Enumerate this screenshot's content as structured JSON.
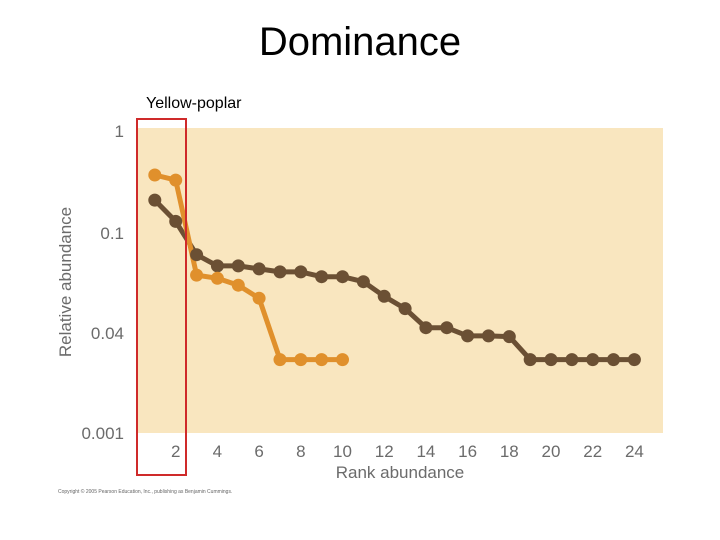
{
  "slide": {
    "title": "Dominance",
    "annotation": "Yellow-poplar",
    "copyright": "Copyright © 2005 Pearson Education, Inc., publishing as Benjamin Cummings."
  },
  "colors": {
    "plot_background": "#f9e6bf",
    "series_dark": "#6b5034",
    "series_orange": "#e0902c",
    "highlight_box": "#cf2a2a",
    "text": "#6b6b6b"
  },
  "chart_data": {
    "type": "line",
    "xlabel": "Rank abundance",
    "ylabel": "Relative abundance",
    "x_ticks": [
      "2",
      "4",
      "6",
      "8",
      "10",
      "12",
      "14",
      "16",
      "18",
      "20",
      "22",
      "24"
    ],
    "y_ticks": [
      "1",
      "0.1",
      "0.04",
      "0.001"
    ],
    "xlim": [
      0,
      25
    ],
    "y_scale": "nonuniform log-like",
    "grid": false,
    "series": [
      {
        "color": "#6b5034",
        "points": [
          {
            "x": 1,
            "y": 0.21
          },
          {
            "x": 2,
            "y": 0.13
          },
          {
            "x": 3,
            "y": 0.082
          },
          {
            "x": 4,
            "y": 0.074
          },
          {
            "x": 5,
            "y": 0.074
          },
          {
            "x": 6,
            "y": 0.072
          },
          {
            "x": 7,
            "y": 0.07
          },
          {
            "x": 8,
            "y": 0.07
          },
          {
            "x": 9,
            "y": 0.067
          },
          {
            "x": 10,
            "y": 0.067
          },
          {
            "x": 11,
            "y": 0.064
          },
          {
            "x": 12,
            "y": 0.056
          },
          {
            "x": 13,
            "y": 0.05
          },
          {
            "x": 14,
            "y": 0.042
          },
          {
            "x": 15,
            "y": 0.042
          },
          {
            "x": 16,
            "y": 0.036
          },
          {
            "x": 17,
            "y": 0.036
          },
          {
            "x": 18,
            "y": 0.035
          },
          {
            "x": 19,
            "y": 0.015
          },
          {
            "x": 20,
            "y": 0.015
          },
          {
            "x": 21,
            "y": 0.015
          },
          {
            "x": 22,
            "y": 0.015
          },
          {
            "x": 23,
            "y": 0.015
          },
          {
            "x": 24,
            "y": 0.015
          }
        ]
      },
      {
        "color": "#e0902c",
        "points": [
          {
            "x": 1,
            "y": 0.37
          },
          {
            "x": 2,
            "y": 0.33
          },
          {
            "x": 3,
            "y": 0.068
          },
          {
            "x": 4,
            "y": 0.066
          },
          {
            "x": 5,
            "y": 0.062
          },
          {
            "x": 6,
            "y": 0.055
          },
          {
            "x": 7,
            "y": 0.015
          },
          {
            "x": 8,
            "y": 0.015
          },
          {
            "x": 9,
            "y": 0.015
          },
          {
            "x": 10,
            "y": 0.015
          }
        ]
      }
    ],
    "highlight": {
      "x_from": 0.5,
      "x_to": 2.5,
      "label": "Yellow-poplar"
    }
  }
}
